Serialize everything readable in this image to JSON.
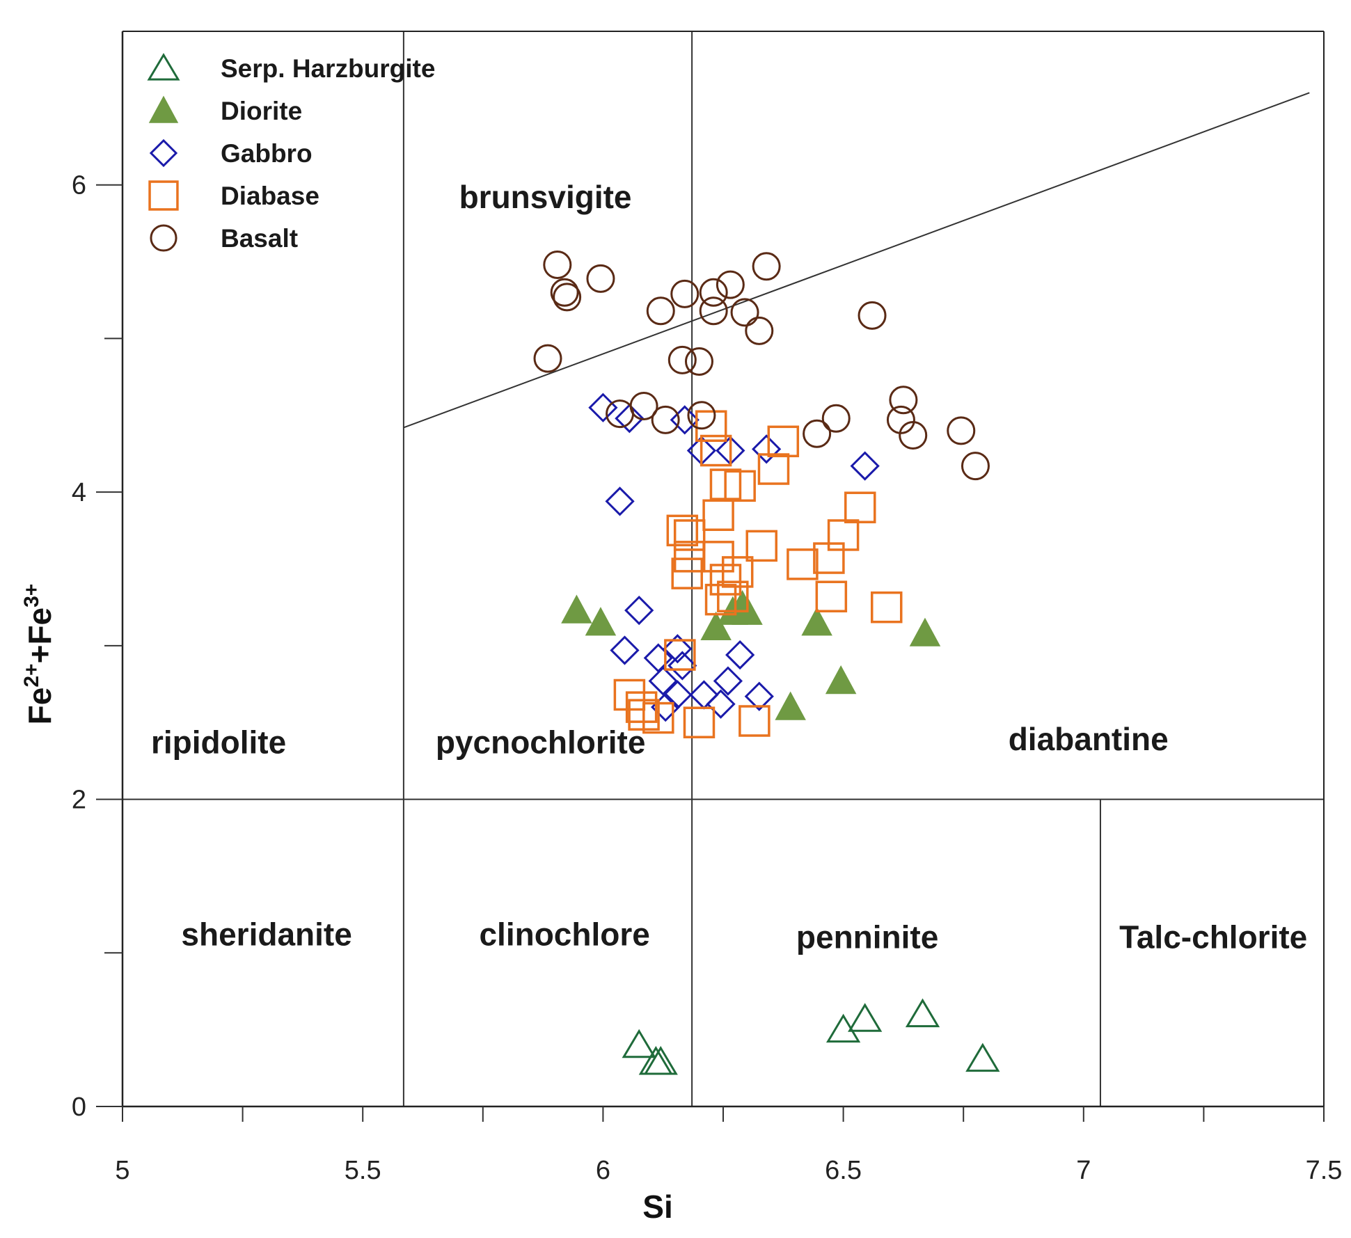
{
  "chart_data": {
    "type": "scatter",
    "xlabel": "Si",
    "ylabel_parts": [
      "Fe",
      "2+",
      "+Fe",
      "3+"
    ],
    "xlim": [
      5,
      7.5
    ],
    "ylim": [
      0,
      7
    ],
    "x_ticks": [
      5,
      5.25,
      5.5,
      5.75,
      6,
      6.25,
      6.5,
      6.75,
      7,
      7.25,
      7.5
    ],
    "x_tick_labels": [
      {
        "value": 5,
        "label": "5"
      },
      {
        "value": 5.5,
        "label": "5.5"
      },
      {
        "value": 6,
        "label": "6"
      },
      {
        "value": 6.5,
        "label": "6.5"
      },
      {
        "value": 7,
        "label": "7"
      },
      {
        "value": 7.5,
        "label": "7.5"
      }
    ],
    "y_ticks": [
      0,
      1,
      2,
      3,
      4,
      5,
      6
    ],
    "y_tick_labels": [
      {
        "value": 0,
        "label": "0"
      },
      {
        "value": 2,
        "label": "2"
      },
      {
        "value": 4,
        "label": "4"
      },
      {
        "value": 6,
        "label": "6"
      }
    ],
    "boundaries": [
      {
        "x1": 5.585,
        "y1": 0,
        "x2": 5.585,
        "y2": 7
      },
      {
        "x1": 6.185,
        "y1": 0,
        "x2": 6.185,
        "y2": 7
      },
      {
        "x1": 7.035,
        "y1": 0,
        "x2": 7.035,
        "y2": 2
      },
      {
        "x1": 5,
        "y1": 2,
        "x2": 7.5,
        "y2": 2
      },
      {
        "x1": 5.585,
        "y1": 4.42,
        "x2": 7.47,
        "y2": 6.6
      }
    ],
    "fields": [
      {
        "name": "brunsvigite",
        "x": 5.88,
        "y": 5.85
      },
      {
        "name": "ripidolite",
        "x": 5.2,
        "y": 2.3
      },
      {
        "name": "pycnochlorite",
        "x": 5.87,
        "y": 2.3
      },
      {
        "name": "diabantine",
        "x": 7.01,
        "y": 2.32
      },
      {
        "name": "sheridanite",
        "x": 5.3,
        "y": 1.05
      },
      {
        "name": "clinochlore",
        "x": 5.92,
        "y": 1.05
      },
      {
        "name": "penninite",
        "x": 6.55,
        "y": 1.03
      },
      {
        "name": "Talc-chlorite",
        "x": 7.27,
        "y": 1.03
      }
    ],
    "series": [
      {
        "name": "Serp. Harzburgite",
        "marker": "triangle-open",
        "color": "#1f6b3a",
        "points": [
          [
            6.075,
            0.4
          ],
          [
            6.11,
            0.29
          ],
          [
            6.12,
            0.29
          ],
          [
            6.5,
            0.5
          ],
          [
            6.545,
            0.57
          ],
          [
            6.665,
            0.6
          ],
          [
            6.79,
            0.31
          ]
        ]
      },
      {
        "name": "Diorite",
        "marker": "triangle-filled",
        "color": "#6f9a43",
        "points": [
          [
            5.945,
            3.23
          ],
          [
            5.995,
            3.15
          ],
          [
            6.235,
            3.12
          ],
          [
            6.27,
            3.22
          ],
          [
            6.29,
            3.26
          ],
          [
            6.3,
            3.22
          ],
          [
            6.445,
            3.15
          ],
          [
            6.39,
            2.6
          ],
          [
            6.495,
            2.77
          ],
          [
            6.67,
            3.08
          ]
        ]
      },
      {
        "name": "Gabbro",
        "marker": "diamond-open",
        "color": "#1a1aaa",
        "points": [
          [
            6.0,
            4.55
          ],
          [
            6.055,
            4.48
          ],
          [
            6.17,
            4.47
          ],
          [
            6.205,
            4.27
          ],
          [
            6.265,
            4.27
          ],
          [
            6.34,
            4.28
          ],
          [
            6.545,
            4.17
          ],
          [
            6.035,
            3.94
          ],
          [
            6.075,
            3.23
          ],
          [
            6.045,
            2.97
          ],
          [
            6.115,
            2.92
          ],
          [
            6.155,
            2.98
          ],
          [
            6.165,
            2.87
          ],
          [
            6.285,
            2.94
          ],
          [
            6.125,
            2.77
          ],
          [
            6.26,
            2.77
          ],
          [
            6.155,
            2.68
          ],
          [
            6.21,
            2.68
          ],
          [
            6.325,
            2.67
          ],
          [
            6.13,
            2.6
          ],
          [
            6.245,
            2.62
          ]
        ]
      },
      {
        "name": "Diabase",
        "marker": "square-open",
        "color": "#e9731f",
        "points": [
          [
            6.225,
            4.43
          ],
          [
            6.375,
            4.33
          ],
          [
            6.235,
            4.27
          ],
          [
            6.355,
            4.15
          ],
          [
            6.255,
            4.05
          ],
          [
            6.285,
            4.04
          ],
          [
            6.24,
            3.85
          ],
          [
            6.535,
            3.9
          ],
          [
            6.165,
            3.75
          ],
          [
            6.18,
            3.72
          ],
          [
            6.5,
            3.72
          ],
          [
            6.18,
            3.58
          ],
          [
            6.24,
            3.58
          ],
          [
            6.33,
            3.65
          ],
          [
            6.175,
            3.47
          ],
          [
            6.415,
            3.53
          ],
          [
            6.47,
            3.57
          ],
          [
            6.255,
            3.43
          ],
          [
            6.28,
            3.48
          ],
          [
            6.245,
            3.3
          ],
          [
            6.27,
            3.32
          ],
          [
            6.475,
            3.32
          ],
          [
            6.59,
            3.25
          ],
          [
            6.16,
            2.94
          ],
          [
            6.055,
            2.68
          ],
          [
            6.08,
            2.6
          ],
          [
            6.085,
            2.55
          ],
          [
            6.115,
            2.53
          ],
          [
            6.2,
            2.5
          ],
          [
            6.315,
            2.51
          ]
        ]
      },
      {
        "name": "Basalt",
        "marker": "circle-open",
        "color": "#5a2a15",
        "points": [
          [
            5.905,
            5.48
          ],
          [
            5.92,
            5.3
          ],
          [
            5.925,
            5.27
          ],
          [
            5.995,
            5.39
          ],
          [
            6.12,
            5.18
          ],
          [
            6.17,
            5.29
          ],
          [
            6.23,
            5.18
          ],
          [
            6.23,
            5.3
          ],
          [
            6.265,
            5.35
          ],
          [
            6.295,
            5.17
          ],
          [
            6.325,
            5.05
          ],
          [
            6.34,
            5.47
          ],
          [
            6.56,
            5.15
          ],
          [
            5.885,
            4.87
          ],
          [
            6.165,
            4.86
          ],
          [
            6.2,
            4.85
          ],
          [
            6.035,
            4.51
          ],
          [
            6.085,
            4.56
          ],
          [
            6.13,
            4.47
          ],
          [
            6.205,
            4.5
          ],
          [
            6.445,
            4.38
          ],
          [
            6.485,
            4.48
          ],
          [
            6.625,
            4.6
          ],
          [
            6.62,
            4.47
          ],
          [
            6.645,
            4.37
          ],
          [
            6.745,
            4.4
          ],
          [
            6.775,
            4.17
          ]
        ]
      }
    ],
    "legend": {
      "placement": "top-left",
      "entries": [
        {
          "label": "Serp. Harzburgite",
          "marker": "triangle-open",
          "color": "#1f6b3a"
        },
        {
          "label": "Diorite",
          "marker": "triangle-filled",
          "color": "#6f9a43"
        },
        {
          "label": "Gabbro",
          "marker": "diamond-open",
          "color": "#1a1aaa"
        },
        {
          "label": "Diabase",
          "marker": "square-open",
          "color": "#e9731f"
        },
        {
          "label": "Basalt",
          "marker": "circle-open",
          "color": "#5a2a15"
        }
      ]
    }
  }
}
